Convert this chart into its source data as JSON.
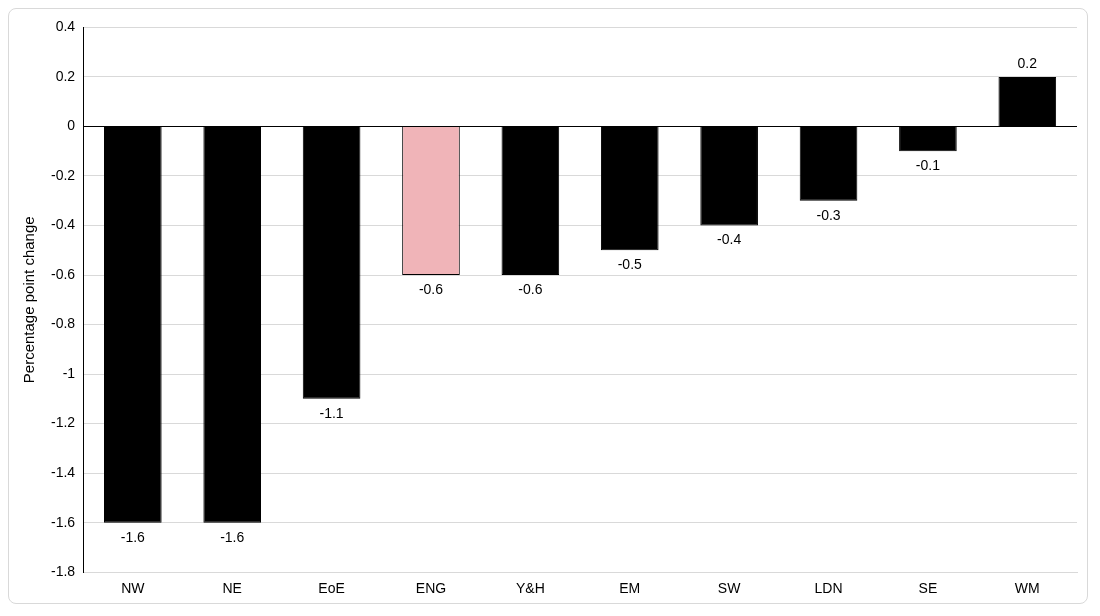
{
  "chart_data": {
    "type": "bar",
    "ylabel": "Percentage point change",
    "categories": [
      "NW",
      "NE",
      "EoE",
      "ENG",
      "Y&H",
      "EM",
      "SW",
      "LDN",
      "SE",
      "WM"
    ],
    "values": [
      -1.6,
      -1.6,
      -1.1,
      -0.6,
      -0.6,
      -0.5,
      -0.4,
      -0.3,
      -0.1,
      0.2
    ],
    "colors": [
      "#000000",
      "#000000",
      "#000000",
      "#f0b4b8",
      "#000000",
      "#000000",
      "#000000",
      "#000000",
      "#000000",
      "#000000"
    ],
    "ylim": [
      -1.8,
      0.4
    ],
    "yticks": [
      -1.8,
      -1.6,
      -1.4,
      -1.2,
      -1,
      -0.8,
      -0.6,
      -0.4,
      -0.2,
      0,
      0.2,
      0.4
    ],
    "grid": "y",
    "data_labels": true
  }
}
